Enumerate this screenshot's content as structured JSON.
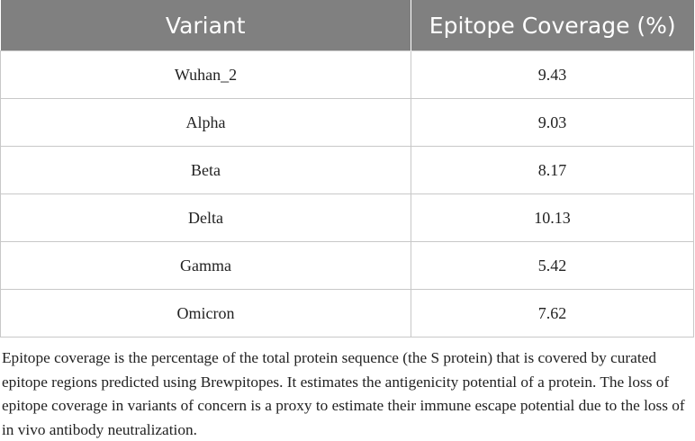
{
  "table": {
    "header": [
      "Variant",
      "Epitope Coverage (%)"
    ],
    "rows": [
      [
        "Wuhan_2",
        9.43
      ],
      [
        "Alpha",
        9.03
      ],
      [
        "Beta",
        8.17
      ],
      [
        "Delta",
        10.13
      ],
      [
        "Gamma",
        5.42
      ],
      [
        "Omicron",
        7.62
      ]
    ]
  },
  "caption": "Epitope coverage is the percentage of the total protein sequence (the S protein) that is covered by curated epitope regions predicted using Brewpitopes. It estimates the antigenicity potential of a protein. The loss of epitope coverage in variants of concern is a proxy to estimate their immune escape potential due to the loss of in vivo antibody neutralization."
}
